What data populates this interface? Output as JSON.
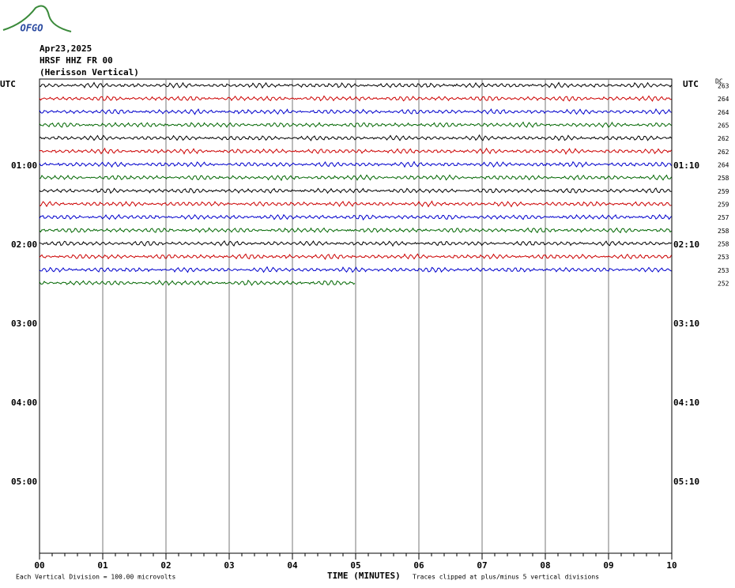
{
  "logo": "OFGO",
  "header": {
    "date": "Apr23,2025",
    "station": "HRSF HHZ FR 00",
    "name": "(Herisson Vertical)"
  },
  "left_label": "UTC",
  "right_label": "UTC",
  "dc_label": "DC",
  "left_times": [
    "01:00",
    "02:00",
    "03:00",
    "04:00",
    "05:00"
  ],
  "right_times": [
    "01:10",
    "02:10",
    "03:10",
    "04:10",
    "05:10"
  ],
  "dc_values": [
    "263",
    "264",
    "264",
    "265",
    "262",
    "262",
    "264",
    "258",
    "259",
    "259",
    "257",
    "258",
    "258",
    "253",
    "253",
    "252"
  ],
  "trace_colors": [
    "#000000",
    "#cc0000",
    "#0000cc",
    "#006600"
  ],
  "x_ticks": [
    "00",
    "01",
    "02",
    "03",
    "04",
    "05",
    "06",
    "07",
    "08",
    "09",
    "10"
  ],
  "x_label": "TIME (MINUTES)",
  "footer_left": "Each Vertical Division =  100.00 microvolts",
  "footer_right": "Traces clipped at plus/minus 5 vertical divisions"
}
